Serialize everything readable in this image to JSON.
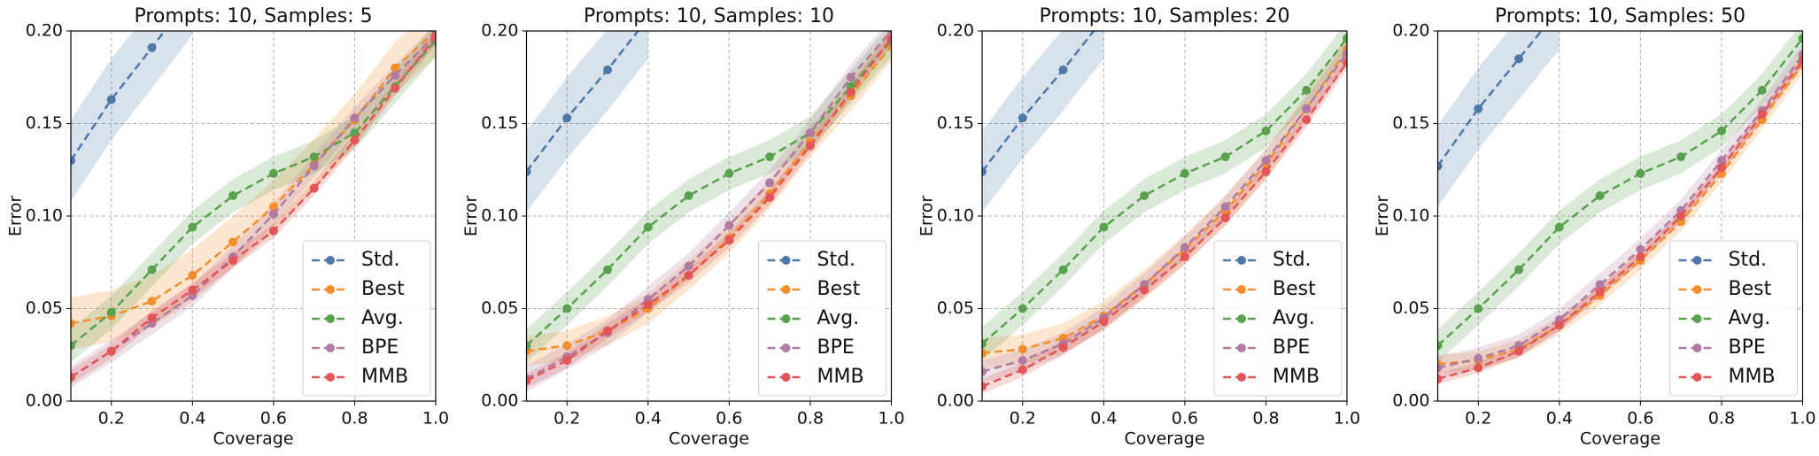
{
  "chart_data": [
    {
      "type": "line",
      "title": "Prompts: 10, Samples: 5",
      "xlabel": "Coverage",
      "ylabel": "Error",
      "legend": "lower right",
      "grid": true,
      "x": [
        0.1,
        0.2,
        0.3,
        0.4,
        0.5,
        0.6,
        0.7,
        0.8,
        0.9,
        1.0
      ],
      "xlim": [
        0.1,
        1.0
      ],
      "xticks": [
        0.2,
        0.4,
        0.6,
        0.8,
        {
          "value": 1,
          "label": "1.0"
        }
      ],
      "ylim": [
        0,
        0.2
      ],
      "yticks": [
        {
          "value": 0,
          "label": "0.00"
        },
        {
          "value": 0.05,
          "label": "0.05"
        },
        {
          "value": 0.1,
          "label": "0.10"
        },
        {
          "value": 0.15,
          "label": "0.15"
        },
        {
          "value": 0.2,
          "label": "0.20"
        }
      ],
      "series": [
        {
          "name": "Std.",
          "color": "#4e79a7",
          "error": 0.022,
          "values": [
            0.13,
            0.163,
            0.191,
            0.22,
            null,
            null,
            null,
            null,
            null,
            null
          ]
        },
        {
          "name": "Best",
          "color": "#f28e2b",
          "error": 0.014,
          "values": [
            0.042,
            0.046,
            0.054,
            0.068,
            0.086,
            0.105,
            0.128,
            0.152,
            0.18,
            0.2
          ]
        },
        {
          "name": "Avg.",
          "color": "#59a14f",
          "error": 0.009,
          "values": [
            0.03,
            0.048,
            0.071,
            0.094,
            0.111,
            0.123,
            0.132,
            0.145,
            0.17,
            0.195
          ]
        },
        {
          "name": "BPE",
          "color": "#b07aa1",
          "error": 0.006,
          "values": [
            0.013,
            0.027,
            0.042,
            0.057,
            0.078,
            0.101,
            0.127,
            0.153,
            0.176,
            0.198
          ]
        },
        {
          "name": "MMB",
          "color": "#e15759",
          "error": 0.004,
          "values": [
            0.013,
            0.027,
            0.045,
            0.06,
            0.076,
            0.092,
            0.115,
            0.141,
            0.169,
            0.197
          ]
        }
      ]
    },
    {
      "type": "line",
      "title": "Prompts: 10, Samples: 10",
      "xlabel": "Coverage",
      "ylabel": "Error",
      "legend": "lower right",
      "grid": true,
      "x": [
        0.1,
        0.2,
        0.3,
        0.4,
        0.5,
        0.6,
        0.7,
        0.8,
        0.9,
        1.0
      ],
      "xlim": [
        0.1,
        1.0
      ],
      "xticks": [
        0.2,
        0.4,
        0.6,
        0.8,
        {
          "value": 1,
          "label": "1.0"
        }
      ],
      "ylim": [
        0,
        0.2
      ],
      "yticks": [
        {
          "value": 0,
          "label": "0.00"
        },
        {
          "value": 0.05,
          "label": "0.05"
        },
        {
          "value": 0.1,
          "label": "0.10"
        },
        {
          "value": 0.15,
          "label": "0.15"
        },
        {
          "value": 0.2,
          "label": "0.20"
        }
      ],
      "series": [
        {
          "name": "Std.",
          "color": "#4e79a7",
          "error": 0.022,
          "values": [
            0.124,
            0.153,
            0.179,
            0.207,
            null,
            null,
            null,
            null,
            null,
            null
          ]
        },
        {
          "name": "Best",
          "color": "#f28e2b",
          "error": 0.008,
          "values": [
            0.027,
            0.03,
            0.038,
            0.05,
            0.068,
            0.088,
            0.112,
            0.14,
            0.165,
            0.192
          ]
        },
        {
          "name": "Avg.",
          "color": "#59a14f",
          "error": 0.009,
          "values": [
            0.03,
            0.05,
            0.071,
            0.094,
            0.111,
            0.123,
            0.132,
            0.145,
            0.17,
            0.195
          ]
        },
        {
          "name": "BPE",
          "color": "#b07aa1",
          "error": 0.007,
          "values": [
            0.012,
            0.024,
            0.037,
            0.055,
            0.073,
            0.095,
            0.118,
            0.145,
            0.175,
            0.2
          ]
        },
        {
          "name": "MMB",
          "color": "#e15759",
          "error": 0.004,
          "values": [
            0.011,
            0.022,
            0.038,
            0.052,
            0.068,
            0.087,
            0.11,
            0.138,
            0.167,
            0.196
          ]
        }
      ]
    },
    {
      "type": "line",
      "title": "Prompts: 10, Samples: 20",
      "xlabel": "Coverage",
      "ylabel": "Error",
      "legend": "lower right",
      "grid": true,
      "x": [
        0.1,
        0.2,
        0.3,
        0.4,
        0.5,
        0.6,
        0.7,
        0.8,
        0.9,
        1.0
      ],
      "xlim": [
        0.1,
        1.0
      ],
      "xticks": [
        0.2,
        0.4,
        0.6,
        0.8,
        {
          "value": 1,
          "label": "1.0"
        }
      ],
      "ylim": [
        0,
        0.2
      ],
      "yticks": [
        {
          "value": 0,
          "label": "0.00"
        },
        {
          "value": 0.05,
          "label": "0.05"
        },
        {
          "value": 0.1,
          "label": "0.10"
        },
        {
          "value": 0.15,
          "label": "0.15"
        },
        {
          "value": 0.2,
          "label": "0.20"
        }
      ],
      "series": [
        {
          "name": "Std.",
          "color": "#4e79a7",
          "error": 0.022,
          "values": [
            0.124,
            0.153,
            0.179,
            0.207,
            null,
            null,
            null,
            null,
            null,
            null
          ]
        },
        {
          "name": "Best",
          "color": "#f28e2b",
          "error": 0.008,
          "values": [
            0.026,
            0.028,
            0.034,
            0.046,
            0.063,
            0.082,
            0.103,
            0.128,
            0.158,
            0.19
          ]
        },
        {
          "name": "Avg.",
          "color": "#59a14f",
          "error": 0.009,
          "values": [
            0.031,
            0.05,
            0.071,
            0.094,
            0.111,
            0.123,
            0.132,
            0.146,
            0.168,
            0.196
          ]
        },
        {
          "name": "BPE",
          "color": "#b07aa1",
          "error": 0.006,
          "values": [
            0.016,
            0.022,
            0.031,
            0.045,
            0.063,
            0.083,
            0.105,
            0.13,
            0.158,
            0.188
          ]
        },
        {
          "name": "MMB",
          "color": "#e15759",
          "error": 0.004,
          "values": [
            0.008,
            0.017,
            0.029,
            0.043,
            0.06,
            0.078,
            0.099,
            0.124,
            0.152,
            0.183
          ]
        }
      ]
    },
    {
      "type": "line",
      "title": "Prompts: 10, Samples: 50",
      "xlabel": "Coverage",
      "ylabel": "Error",
      "legend": "lower right",
      "grid": true,
      "x": [
        0.1,
        0.2,
        0.3,
        0.4,
        0.5,
        0.6,
        0.7,
        0.8,
        0.9,
        1.0
      ],
      "xlim": [
        0.1,
        1.0
      ],
      "xticks": [
        0.2,
        0.4,
        0.6,
        0.8,
        {
          "value": 1,
          "label": "1.0"
        }
      ],
      "ylim": [
        0,
        0.2
      ],
      "yticks": [
        {
          "value": 0,
          "label": "0.00"
        },
        {
          "value": 0.05,
          "label": "0.05"
        },
        {
          "value": 0.1,
          "label": "0.10"
        },
        {
          "value": 0.15,
          "label": "0.15"
        },
        {
          "value": 0.2,
          "label": "0.20"
        }
      ],
      "series": [
        {
          "name": "Std.",
          "color": "#4e79a7",
          "error": 0.022,
          "values": [
            0.127,
            0.158,
            0.185,
            0.212,
            null,
            null,
            null,
            null,
            null,
            null
          ]
        },
        {
          "name": "Best",
          "color": "#f28e2b",
          "error": 0.005,
          "values": [
            0.02,
            0.022,
            0.028,
            0.041,
            0.057,
            0.076,
            0.097,
            0.123,
            0.152,
            0.182
          ]
        },
        {
          "name": "Avg.",
          "color": "#59a14f",
          "error": 0.009,
          "values": [
            0.03,
            0.05,
            0.071,
            0.094,
            0.111,
            0.123,
            0.132,
            0.146,
            0.168,
            0.196
          ]
        },
        {
          "name": "BPE",
          "color": "#b07aa1",
          "error": 0.006,
          "values": [
            0.018,
            0.023,
            0.03,
            0.044,
            0.063,
            0.082,
            0.103,
            0.13,
            0.157,
            0.187
          ]
        },
        {
          "name": "MMB",
          "color": "#e15759",
          "error": 0.003,
          "values": [
            0.012,
            0.018,
            0.027,
            0.041,
            0.059,
            0.078,
            0.1,
            0.126,
            0.155,
            0.184
          ]
        }
      ]
    }
  ]
}
